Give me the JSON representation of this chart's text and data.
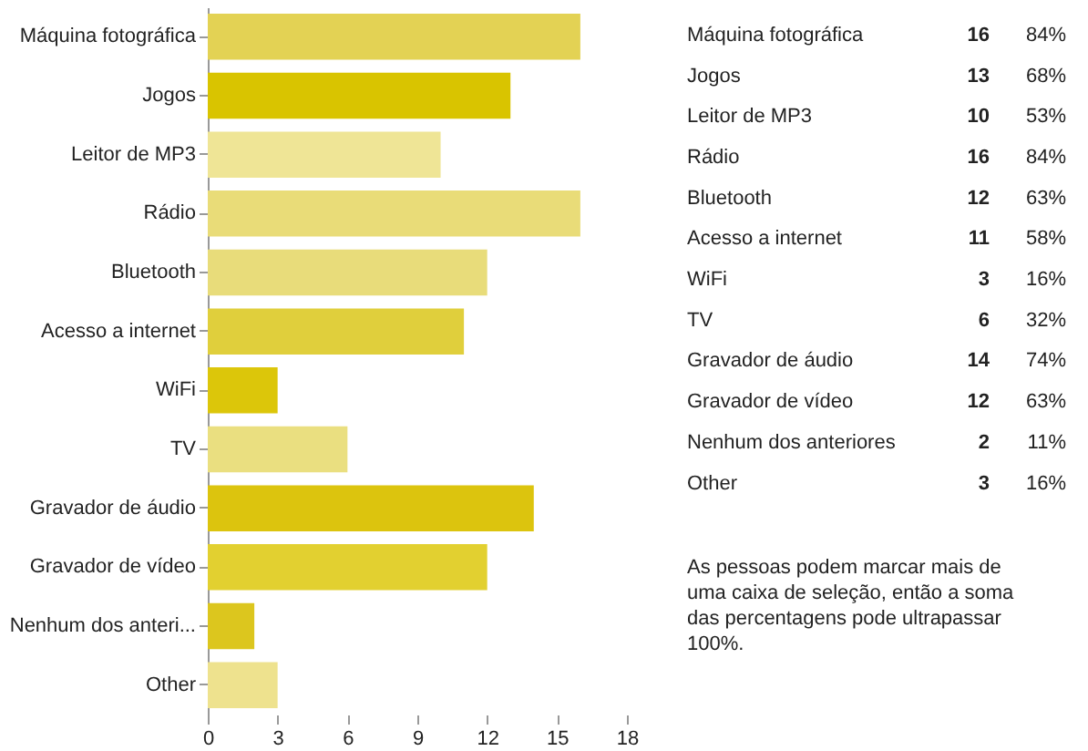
{
  "chart_data": [
    {
      "type": "bar",
      "orientation": "horizontal",
      "categories": [
        "Máquina fotográfica",
        "Jogos",
        "Leitor de MP3",
        "Rádio",
        "Bluetooth",
        "Acesso a internet",
        "WiFi",
        "TV",
        "Gravador de áudio",
        "Gravador de vídeo",
        "Nenhum dos anteri...",
        "Other"
      ],
      "values": [
        16,
        13,
        10,
        16,
        12,
        11,
        3,
        6,
        14,
        12,
        2,
        3
      ],
      "colors": [
        "#e3d254",
        "#d9c400",
        "#efe596",
        "#e9dc78",
        "#e8dc7a",
        "#e0cf3c",
        "#dcc60a",
        "#eadf80",
        "#dcc40e",
        "#e2d030",
        "#dcc61e",
        "#eee28e"
      ],
      "xlim": [
        0,
        18
      ],
      "xticks": [
        0,
        3,
        6,
        9,
        12,
        15,
        18
      ],
      "grid": false,
      "legend": false
    },
    {
      "type": "other",
      "categories": [
        "Máquina fotográfica",
        "Jogos",
        "Leitor de MP3",
        "Rádio",
        "Bluetooth",
        "Acesso a internet",
        "WiFi",
        "TV",
        "Gravador de áudio",
        "Gravador de vídeo",
        "Nenhum dos anteriores",
        "Other"
      ],
      "series": [
        {
          "values": [
            16,
            13,
            10,
            16,
            12,
            11,
            3,
            6,
            14,
            12,
            2,
            3
          ]
        },
        {
          "values": [
            84,
            68,
            53,
            84,
            63,
            58,
            16,
            32,
            74,
            63,
            11,
            16
          ],
          "value_labels": [
            "84%",
            "68%",
            "53%",
            "84%",
            "63%",
            "58%",
            "16%",
            "32%",
            "74%",
            "63%",
            "11%",
            "16%"
          ]
        }
      ],
      "data_labels": true,
      "annotations": [
        "As pessoas podem marcar mais de uma caixa de seleção, então a soma das percentagens pode ultrapassar 100%."
      ]
    }
  ]
}
